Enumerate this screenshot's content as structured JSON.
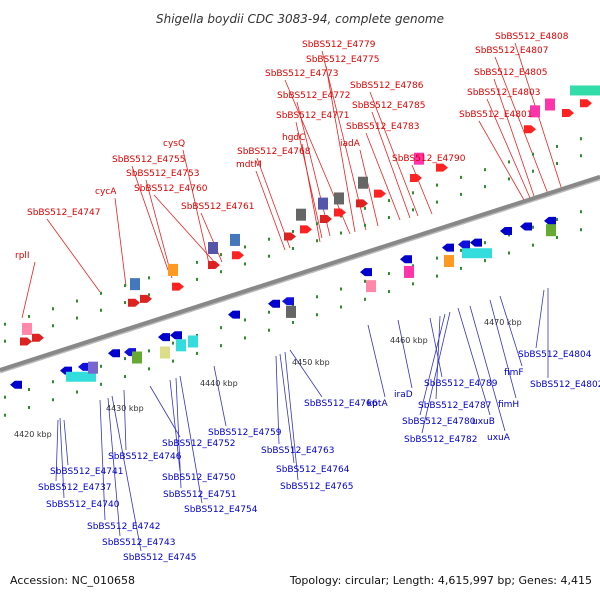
{
  "title": "Shigella boydii CDC 3083-94, complete genome",
  "footer": {
    "accession": "Accession: NC_010658",
    "topology": "Topology: circular; Length: 4,615,997 bp; Genes: 4,415"
  },
  "colors": {
    "forward_label": "#dd0000",
    "reverse_label": "#0000cc",
    "backbone": "#888888"
  },
  "ticks": [
    "4420 kbp",
    "4430 kbp",
    "4440 kbp",
    "4450 kbp",
    "4460 kbp",
    "4470 kbp"
  ],
  "forward_labels": [
    "rplI",
    "SbBS512_E4747",
    "cycA",
    "SbBS512_E4753",
    "SbBS512_E4755",
    "cysQ",
    "SbBS512_E4760",
    "SbBS512_E4761",
    "mdtM",
    "SbBS512_E4768",
    "hgdC",
    "SbBS512_E4771",
    "SbBS512_E4772",
    "SbBS512_E4773",
    "SbBS512_E4775",
    "SbBS512_E4779",
    "iadA",
    "SbBS512_E4783",
    "SbBS512_E4785",
    "SbBS512_E4786",
    "SbBS512_E4790",
    "SbBS512_E4801",
    "SbBS512_E4803",
    "SbBS512_E4805",
    "SbBS512_E4807",
    "SbBS512_E4808"
  ],
  "reverse_labels": [
    "SbBS512_E4741",
    "SbBS512_E4737",
    "SbBS512_E4740",
    "SbBS512_E4742",
    "SbBS512_E4743",
    "SbBS512_E4745",
    "SbBS512_E4746",
    "SbBS512_E4752",
    "SbBS512_E4750",
    "SbBS512_E4751",
    "SbBS512_E4754",
    "SbBS512_E4759",
    "SbBS512_E4763",
    "SbBS512_E4764",
    "SbBS512_E4765",
    "SbBS512_E4766",
    "kptA",
    "iraD",
    "SbBS512_E4789",
    "SbBS512_E4787",
    "SbBS512_E4780",
    "SbBS512_E4782",
    "uxuB",
    "uxuA",
    "fimH",
    "fimF",
    "SbBS512_E4804",
    "SbBS512_E4802"
  ]
}
